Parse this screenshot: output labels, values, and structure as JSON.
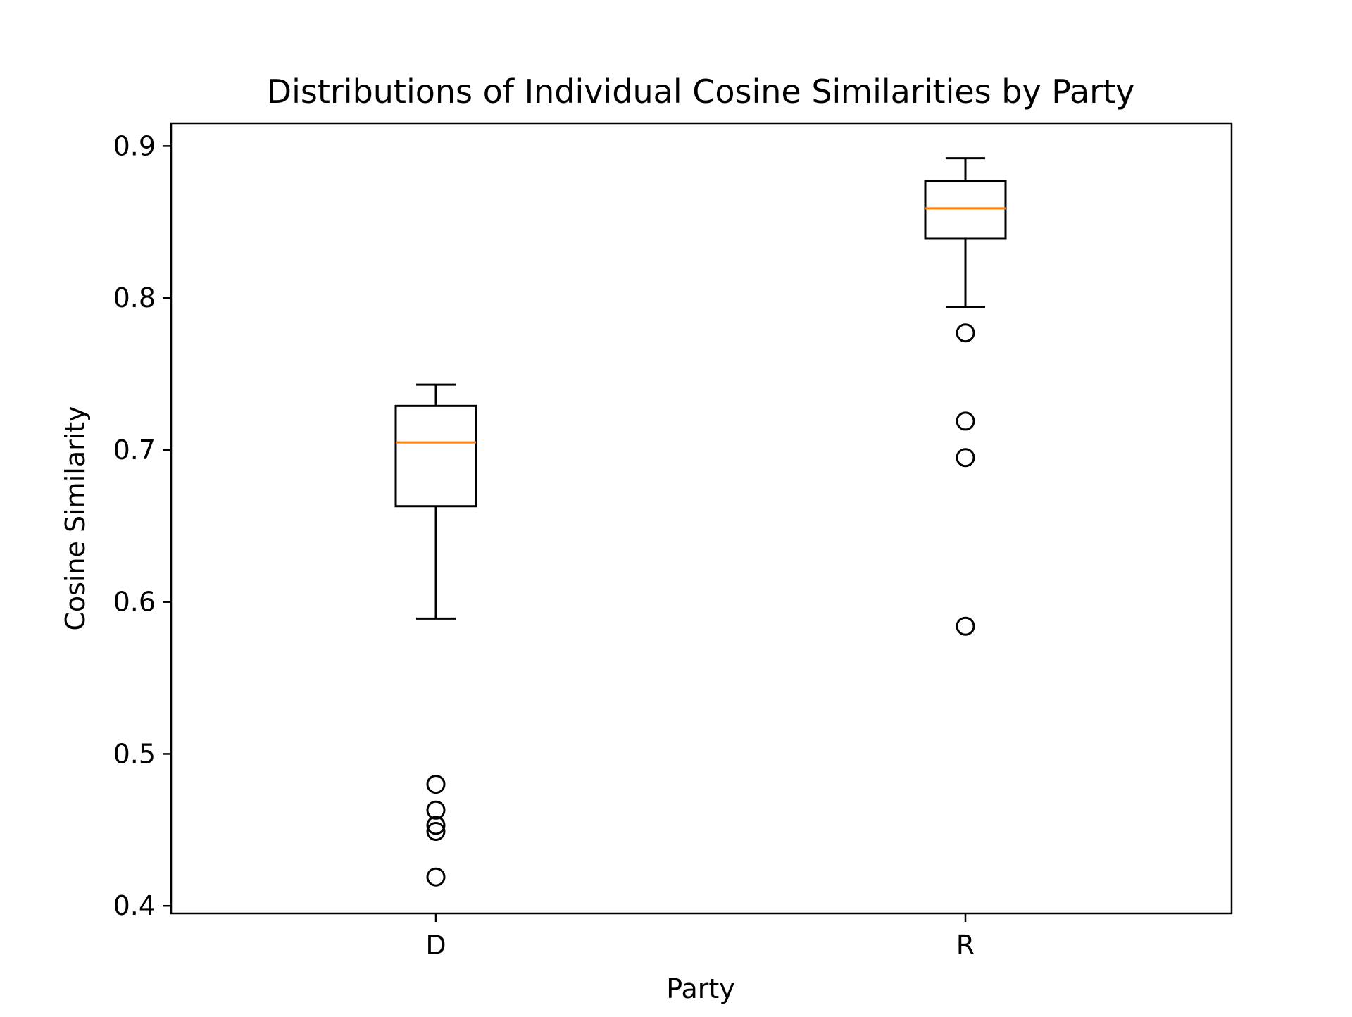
{
  "chart_data": {
    "type": "boxplot",
    "title": "Distributions of Individual Cosine Similarities by Party",
    "xlabel": "Party",
    "ylabel": "Cosine Similarity",
    "categories": [
      "D",
      "R"
    ],
    "ylim": [
      0.395,
      0.915
    ],
    "yticks": [
      0.4,
      0.5,
      0.6,
      0.7,
      0.8,
      0.9
    ],
    "ytick_labels": [
      "0.4",
      "0.5",
      "0.6",
      "0.7",
      "0.8",
      "0.9"
    ],
    "grid": false,
    "legend": "none",
    "boxes": [
      {
        "category": "D",
        "whisker_low": 0.589,
        "q1": 0.663,
        "median": 0.705,
        "q3": 0.729,
        "whisker_high": 0.743,
        "outliers": [
          0.48,
          0.463,
          0.453,
          0.449,
          0.419
        ]
      },
      {
        "category": "R",
        "whisker_low": 0.794,
        "q1": 0.839,
        "median": 0.859,
        "q3": 0.877,
        "whisker_high": 0.892,
        "outliers": [
          0.777,
          0.719,
          0.695,
          0.584
        ]
      }
    ],
    "colors": {
      "box_edge": "#000000",
      "median": "#ff7f0e",
      "flier_edge": "#000000",
      "axes": "#000000",
      "background": "#ffffff"
    }
  }
}
